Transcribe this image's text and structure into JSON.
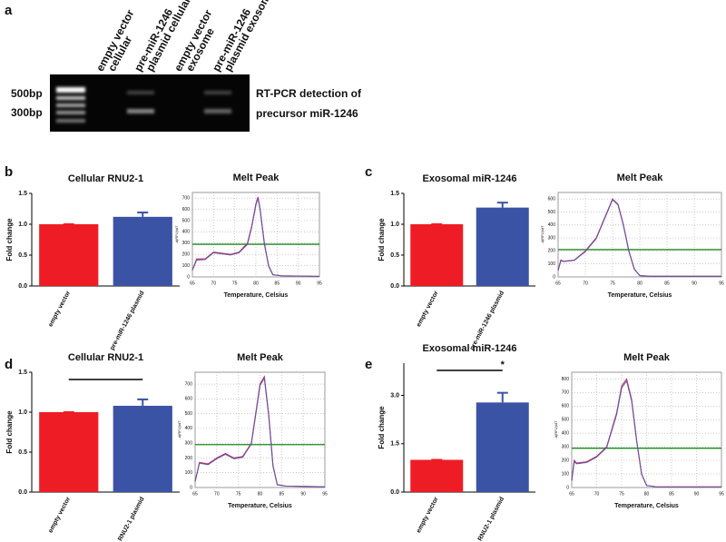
{
  "panels": [
    "a",
    "b",
    "c",
    "d",
    "e"
  ],
  "gel": {
    "lanes": [
      [
        "empty vector",
        "cellular"
      ],
      [
        "pre-miR-1246",
        "plasmid cellular"
      ],
      [
        "empty vector",
        "exosome"
      ],
      [
        "pre-miR-1246",
        "plasmid exosome"
      ]
    ],
    "markers": [
      "500bp",
      "300bp"
    ],
    "caption": [
      "RT-PCR detection of",
      "precursor miR-1246"
    ]
  },
  "chart_data": [
    {
      "type": "bar",
      "title": "Cellular RNU2-1",
      "ylabel": "Fold change",
      "categories": [
        "empty vector",
        "pre-miR-1246 plasmid"
      ],
      "values": [
        1.0,
        1.12
      ],
      "errors": [
        0,
        0.07
      ],
      "colors": [
        "#ee1c25",
        "#3a53a4"
      ],
      "ylim": [
        0,
        1.5
      ],
      "yticks": [
        {
          "value": 0,
          "label": "0.0"
        },
        0.5,
        {
          "value": 1,
          "label": "1.0"
        },
        1.5
      ]
    },
    {
      "type": "line",
      "title": "Melt Peak",
      "xlabel": "Temperature, Celsius",
      "ylabel": "-d(RFU)/dT",
      "xlim": [
        65,
        95
      ],
      "xticks": [
        65,
        70,
        75,
        80,
        85,
        90,
        95
      ],
      "ylim": [
        0,
        750
      ],
      "yticks": [
        0,
        100,
        200,
        300,
        400,
        500,
        600,
        700
      ],
      "grid": true,
      "threshold": 290,
      "threshold_color": "#1a8a1a",
      "x": [
        65,
        66,
        68,
        70,
        72,
        74,
        76,
        78,
        79,
        80,
        80.5,
        81,
        82,
        83,
        84,
        86,
        95
      ],
      "series": [
        {
          "color": "#c0306a",
          "values": [
            60,
            160,
            160,
            220,
            210,
            200,
            220,
            300,
            450,
            650,
            710,
            600,
            300,
            100,
            20,
            10,
            5
          ]
        },
        {
          "color": "#6a4fa0",
          "values": [
            60,
            150,
            155,
            215,
            205,
            195,
            215,
            290,
            440,
            640,
            700,
            590,
            290,
            95,
            18,
            10,
            5
          ]
        }
      ]
    },
    {
      "type": "bar",
      "title": "Exosomal miR-1246",
      "ylabel": "Fold change",
      "categories": [
        "empty vector",
        "pre-miR-1246 plasmid"
      ],
      "values": [
        1.0,
        1.27
      ],
      "errors": [
        0,
        0.08
      ],
      "colors": [
        "#ee1c25",
        "#3a53a4"
      ],
      "ylim": [
        0,
        1.5
      ],
      "yticks": [
        {
          "value": 0,
          "label": "0.0"
        },
        0.5,
        {
          "value": 1,
          "label": "1.0"
        },
        1.5
      ]
    },
    {
      "type": "line",
      "title": "Melt Peak",
      "xlabel": "Temperature, Celsius",
      "ylabel": "-d(RFU)/dT",
      "xlim": [
        65,
        95
      ],
      "xticks": [
        65,
        70,
        75,
        80,
        85,
        90,
        95
      ],
      "ylim": [
        0,
        650
      ],
      "yticks": [
        0,
        100,
        200,
        300,
        400,
        500,
        600
      ],
      "grid": true,
      "threshold": 210,
      "threshold_color": "#1a8a1a",
      "x": [
        65,
        65.5,
        66,
        68,
        70,
        72,
        74,
        75,
        76,
        77,
        78,
        79,
        80,
        82,
        85,
        95
      ],
      "series": [
        {
          "color": "#c0306a",
          "values": [
            50,
            130,
            120,
            130,
            200,
            300,
            500,
            600,
            560,
            400,
            200,
            60,
            10,
            5,
            5,
            5
          ]
        },
        {
          "color": "#6a4fa0",
          "values": [
            50,
            125,
            118,
            128,
            195,
            295,
            495,
            595,
            555,
            395,
            195,
            58,
            10,
            5,
            5,
            5
          ]
        }
      ]
    },
    {
      "type": "bar",
      "title": "Cellular RNU2-1",
      "ylabel": "Fold change",
      "categories": [
        "empty vector",
        "RNU2-1 plasmid"
      ],
      "values": [
        1.0,
        1.08
      ],
      "errors": [
        0,
        0.08
      ],
      "colors": [
        "#ee1c25",
        "#3a53a4"
      ],
      "ylim": [
        0,
        1.5
      ],
      "yticks": [
        {
          "value": 0,
          "label": "0.0"
        },
        0.5,
        {
          "value": 1,
          "label": "1.0"
        },
        1.5
      ],
      "bracket": true
    },
    {
      "type": "line",
      "title": "Melt Peak",
      "xlabel": "Temperature, Celsius",
      "ylabel": "-d(RFU)/dT",
      "xlim": [
        65,
        95
      ],
      "xticks": [
        65,
        70,
        75,
        80,
        85,
        90,
        95
      ],
      "ylim": [
        0,
        780
      ],
      "yticks": [
        0,
        100,
        200,
        300,
        400,
        500,
        600,
        700
      ],
      "grid": true,
      "threshold": 290,
      "threshold_color": "#1a8a1a",
      "x": [
        65,
        66,
        68,
        70,
        72,
        74,
        76,
        78,
        79,
        80,
        81,
        82,
        83,
        84,
        86,
        95
      ],
      "series": [
        {
          "color": "#c0306a",
          "values": [
            40,
            170,
            160,
            200,
            230,
            200,
            210,
            300,
            500,
            700,
            750,
            500,
            150,
            20,
            10,
            5
          ]
        },
        {
          "color": "#6a4fa0",
          "values": [
            40,
            165,
            155,
            195,
            225,
            195,
            205,
            295,
            490,
            690,
            740,
            490,
            145,
            18,
            10,
            5
          ]
        }
      ]
    },
    {
      "type": "bar",
      "title": "Exosomal miR-1246",
      "ylabel": "Fold change",
      "categories": [
        "empty vector",
        "RNU2-1 plasmid"
      ],
      "values": [
        1.0,
        2.78
      ],
      "errors": [
        0,
        0.3
      ],
      "colors": [
        "#ee1c25",
        "#3a53a4"
      ],
      "ylim": [
        0,
        4
      ],
      "yticks": [
        {
          "value": 0,
          "label": "0.0"
        },
        1.5,
        {
          "value": 3,
          "label": "3.0"
        }
      ],
      "bracket": true,
      "annotation": "*"
    },
    {
      "type": "line",
      "title": "Melt Peak",
      "xlabel": "Temperature, Celsius",
      "ylabel": "-d(RFU)/dT",
      "xlim": [
        65,
        95
      ],
      "xticks": [
        65,
        70,
        75,
        80,
        85,
        90,
        95
      ],
      "ylim": [
        0,
        850
      ],
      "yticks": [
        0,
        100,
        200,
        300,
        400,
        500,
        600,
        700,
        800
      ],
      "grid": true,
      "threshold": 290,
      "threshold_color": "#1a8a1a",
      "x": [
        65,
        65.5,
        66,
        68,
        70,
        72,
        74,
        75,
        76,
        77,
        78,
        79,
        80,
        82,
        95
      ],
      "series": [
        {
          "color": "#c0306a",
          "values": [
            50,
            200,
            180,
            190,
            230,
            300,
            550,
            750,
            800,
            650,
            350,
            100,
            15,
            5,
            5
          ]
        },
        {
          "color": "#6a4fa0",
          "values": [
            50,
            190,
            175,
            185,
            225,
            295,
            540,
            735,
            785,
            640,
            345,
            98,
            15,
            5,
            5
          ]
        }
      ]
    }
  ]
}
